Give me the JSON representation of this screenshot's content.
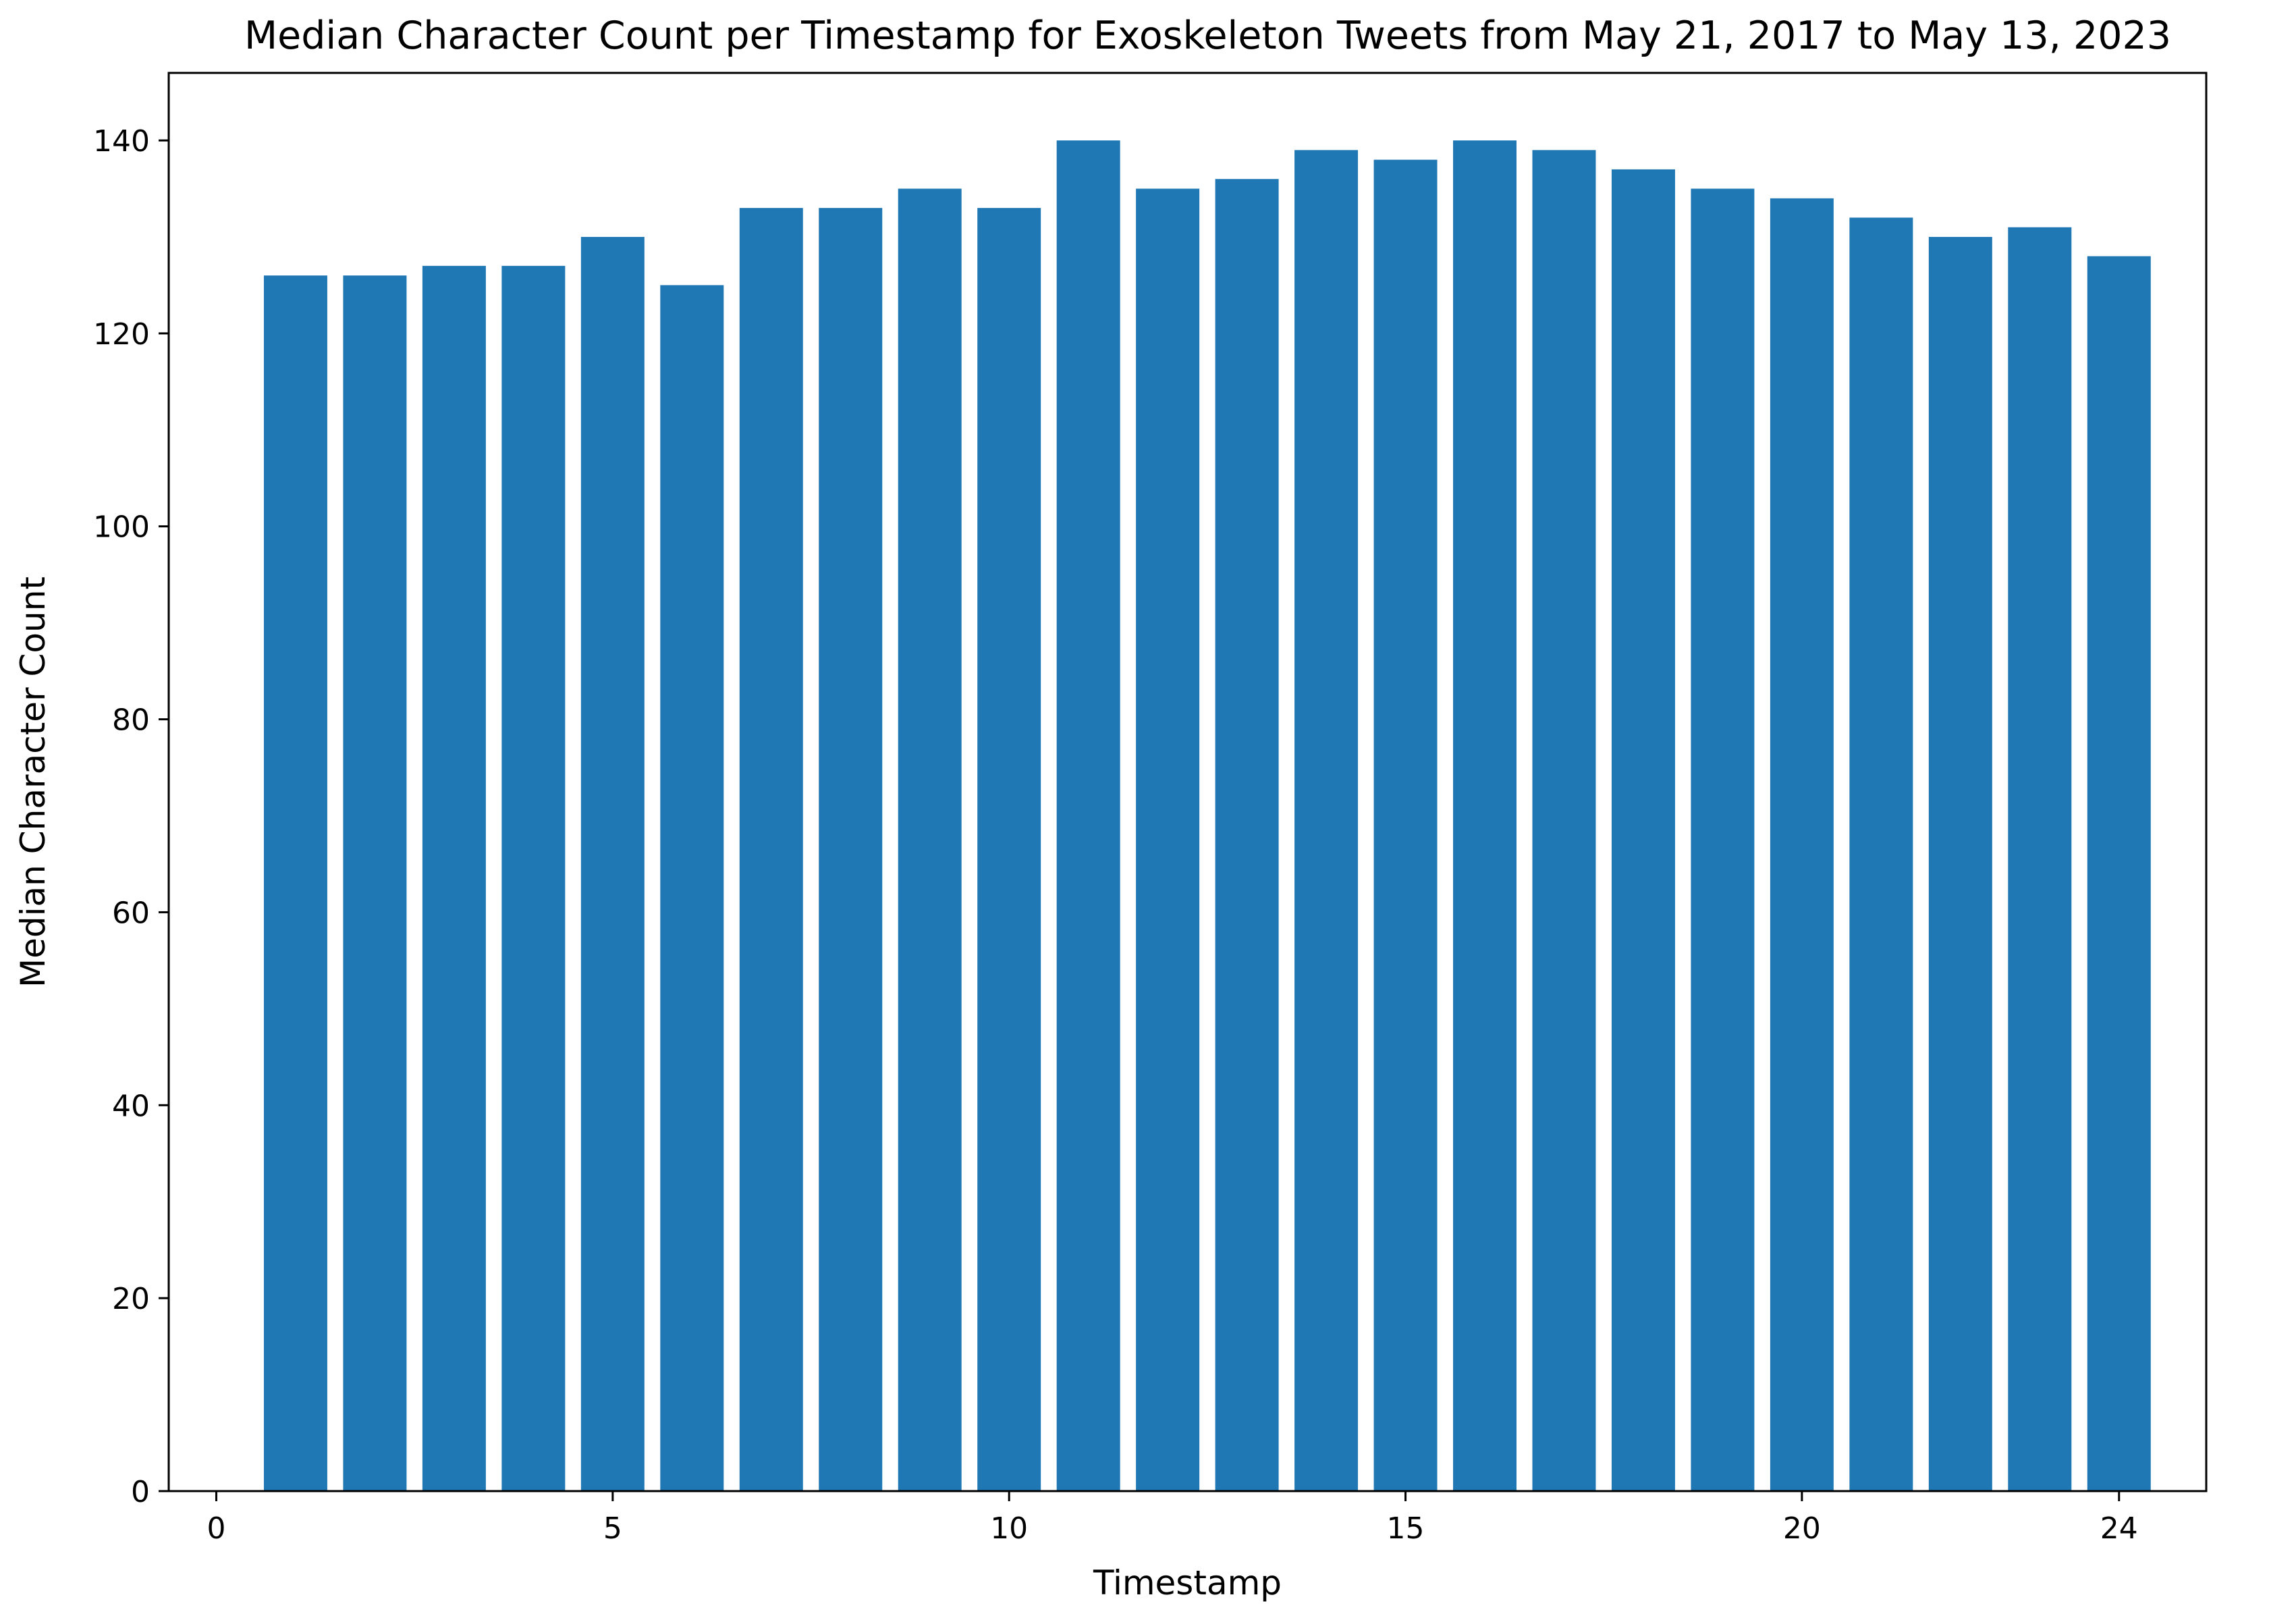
{
  "chart_data": {
    "type": "bar",
    "title": "Median Character Count per Timestamp for Exoskeleton Tweets from May 21, 2017 to May 13, 2023",
    "xlabel": "Timestamp",
    "ylabel": "Median Character Count",
    "x": [
      1,
      2,
      3,
      4,
      5,
      6,
      7,
      8,
      9,
      10,
      11,
      12,
      13,
      14,
      15,
      16,
      17,
      18,
      19,
      20,
      21,
      22,
      23,
      24
    ],
    "values": [
      126,
      126,
      127,
      127,
      130,
      125,
      133,
      133,
      135,
      133,
      140,
      135,
      136,
      139,
      138,
      140,
      139,
      137,
      135,
      134,
      132,
      130,
      131,
      128
    ],
    "xlim": [
      -0.6,
      25.1
    ],
    "ylim": [
      0,
      147
    ],
    "xticks": [
      0,
      5,
      10,
      15,
      20,
      24
    ],
    "yticks": [
      0,
      20,
      40,
      60,
      80,
      100,
      120,
      140
    ],
    "bar_color": "#1f77b4",
    "grid": false,
    "legend": "none"
  }
}
